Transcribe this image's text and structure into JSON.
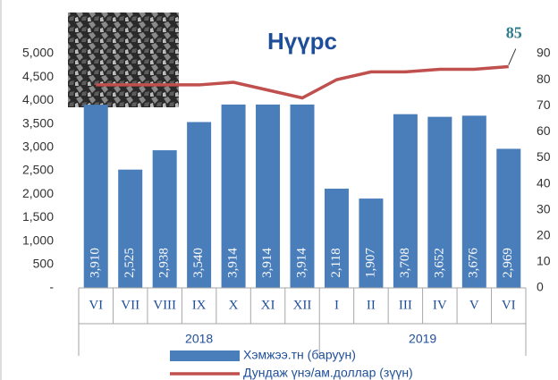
{
  "chart_data": {
    "type": "bar-line",
    "title": "Нүүрс",
    "categories": [
      "VI",
      "VII",
      "VIII",
      "IX",
      "X",
      "XI",
      "XII",
      "I",
      "II",
      "III",
      "IV",
      "V",
      "VI"
    ],
    "groups": [
      {
        "name": "2018",
        "count": 7
      },
      {
        "name": "2019",
        "count": 6
      }
    ],
    "series": [
      {
        "name": "Хэмжээ.тн (баруун)",
        "type": "bar",
        "color": "#4a7ebb",
        "values": [
          3910,
          2525,
          2938,
          3540,
          3914,
          3914,
          3914,
          2118,
          1907,
          3708,
          3652,
          3676,
          2969
        ],
        "value_labels": [
          "3,910",
          "2,525",
          "2,938",
          "3,540",
          "3,914",
          "3,914",
          "3,914",
          "2,118",
          "1,907",
          "3,708",
          "3,652",
          "3,676",
          "2,969"
        ]
      },
      {
        "name": "Дундаж үнэ/ам.доллар (зүүн)",
        "type": "line",
        "axis": "y2",
        "color": "#c0504d",
        "values": [
          78,
          78,
          78,
          78,
          79,
          76,
          73,
          80,
          83,
          83,
          84,
          84,
          85
        ],
        "value_labels": [
          null,
          null,
          null,
          null,
          null,
          null,
          null,
          null,
          null,
          null,
          null,
          null,
          "85"
        ]
      }
    ],
    "ylim": [
      0,
      5000
    ],
    "yticks": [
      {
        "value": 0,
        "label": "-"
      },
      500,
      {
        "value": 1000,
        "label": "1,000"
      },
      {
        "value": 1500,
        "label": "1,500"
      },
      {
        "value": 2000,
        "label": "2,000"
      },
      {
        "value": 2500,
        "label": "2,500"
      },
      {
        "value": 3000,
        "label": "3,000"
      },
      {
        "value": 3500,
        "label": "3,500"
      },
      {
        "value": 4000,
        "label": "4,000"
      },
      {
        "value": 4500,
        "label": "4,500"
      },
      {
        "value": 5000,
        "label": "5,000"
      }
    ],
    "y2lim": [
      0,
      90
    ],
    "y2ticks": [
      0,
      10,
      20,
      30,
      40,
      50,
      60,
      70,
      80,
      90
    ]
  }
}
